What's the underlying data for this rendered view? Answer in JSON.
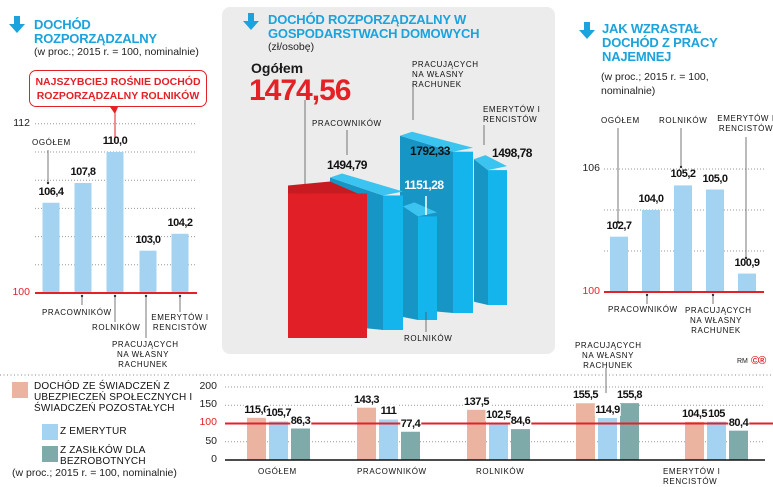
{
  "colors": {
    "accent": "#1aa3dc",
    "red": "#e32127",
    "bar_light": "#a3d3f1",
    "pink": "#ebb4a0",
    "teal": "#7faaaa",
    "blue3d_front": "#14b4ec",
    "blue3d_side": "#1796c6",
    "red3d_front": "#e11f26",
    "red3d_side": "#a8161b"
  },
  "icons": {
    "section_arrow": "arrow-down-icon"
  },
  "left": {
    "title": "DOCHÓD ROZPORZĄDZALNY",
    "subtitle": "(w proc.; 2015 r. = 100, nominalnie)",
    "callout": "NAJSZYBCIEJ ROŚNIE DOCHÓD ROZPORZĄDZALNY ROLNIKÓW"
  },
  "middle": {
    "title": "DOCHÓD ROZPORZĄDZALNY W GOSPODARSTWACH DOMOWYCH",
    "subtitle": "(zł/osobę)",
    "total_label": "Ogółem",
    "total_value": "1474,56"
  },
  "right": {
    "title": "JAK WZRASTAŁ DOCHÓD Z PRACY NAJEMNEJ",
    "subtitle": "(w proc.; 2015 r. = 100, nominalnie)"
  },
  "bottom": {
    "subtitle": "(w proc.; 2015 r. = 100, nominalnie)"
  },
  "credit": {
    "author": "RM",
    "logo": "©®"
  },
  "chart_data": [
    {
      "type": "bar",
      "title": "DOCHÓD ROZPORZĄDZALNY",
      "categories": [
        "OGÓŁEM",
        "PRACOWNIKÓW",
        "ROLNIKÓW",
        "PRACUJĄCYCH NA WŁASNY RACHUNEK",
        "EMERYTÓW I RENCISTÓW"
      ],
      "values": [
        106.4,
        107.8,
        110.0,
        103.0,
        104.2
      ],
      "yticks": [
        "100",
        "112"
      ],
      "ylim": [
        100,
        112
      ],
      "grid": true,
      "reference_line": 100
    },
    {
      "type": "bar",
      "title": "DOCHÓD ROZPORZĄDZALNY W GOSPODARSTWACH DOMOWYCH",
      "unit": "zł/osobę",
      "categories": [
        "Ogółem",
        "PRACOWNIKÓW",
        "ROLNIKÓW",
        "PRACUJĄCYCH NA WŁASNY RACHUNEK",
        "EMERYTÓW I RENCISTÓW"
      ],
      "values": [
        1474.56,
        1494.79,
        1151.28,
        1792.33,
        1498.78
      ],
      "style": "3d"
    },
    {
      "type": "bar",
      "title": "JAK WZRASTAŁ DOCHÓD Z PRACY NAJEMNEJ",
      "categories": [
        "OGÓŁEM",
        "PRACOWNIKÓW",
        "ROLNIKÓW",
        "PRACUJĄCYCH NA WŁASNY RACHUNEK",
        "EMERYTÓW I RENCISTÓW"
      ],
      "values": [
        102.7,
        104.0,
        105.2,
        105.0,
        100.9
      ],
      "yticks": [
        "100",
        "106"
      ],
      "ylim": [
        100,
        106
      ],
      "grid": true,
      "reference_line": 100
    },
    {
      "type": "bar",
      "categories": [
        "OGÓŁEM",
        "PRACOWNIKÓW",
        "ROLNIKÓW",
        "PRACUJĄCYCH NA WŁASNY RACHUNEK",
        "EMERYTÓW I RENCISTÓW"
      ],
      "series": [
        {
          "name": "DOCHÓD ZE ŚWIADCZEŃ Z UBEZPIECZEŃ SPOŁECZNYCH I ŚWIADCZEŃ POZOSTAŁYCH",
          "values": [
            115.6,
            143.3,
            137.5,
            155.5,
            104.5
          ]
        },
        {
          "name": "Z EMERYTUR",
          "values": [
            105.7,
            111,
            102.5,
            114.9,
            105
          ]
        },
        {
          "name": "Z ZASIŁKÓW DLA BEZROBOTNYCH",
          "values": [
            86.3,
            77.4,
            84.6,
            155.8,
            80.4
          ]
        }
      ],
      "yticks": [
        "0",
        "50",
        "100",
        "150",
        "200"
      ],
      "ylim": [
        0,
        200
      ],
      "grid": true,
      "reference_line": 100,
      "legend": "left"
    }
  ]
}
